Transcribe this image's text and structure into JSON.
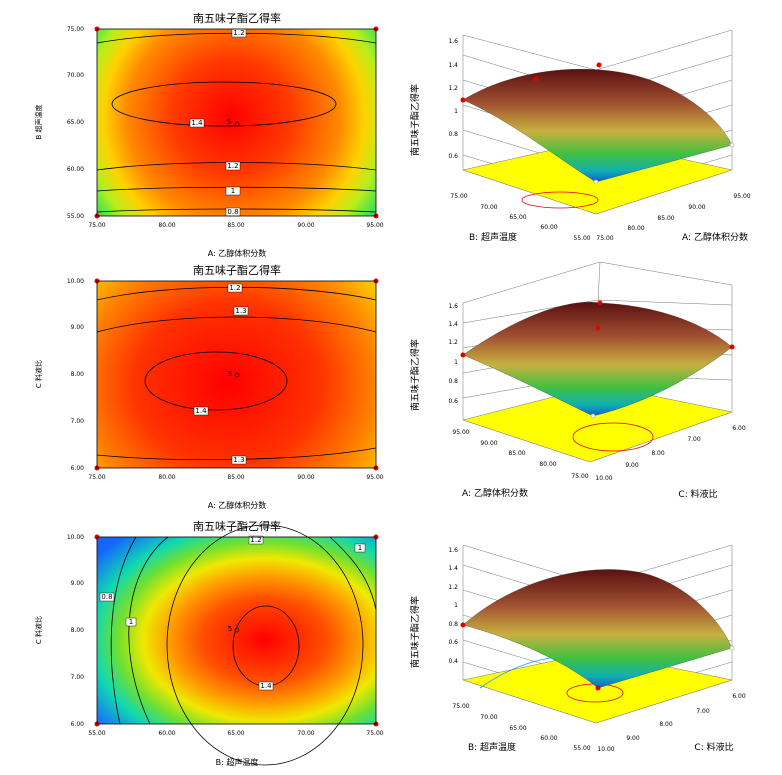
{
  "chart_data": [
    {
      "type": "contour",
      "title": "南五味子酯乙得率",
      "xlabel": "A: 乙醇体积分数",
      "ylabel": "B 超声温度",
      "xticks": [
        "75.00",
        "80.00",
        "85.00",
        "90.00",
        "95.00"
      ],
      "yticks": [
        "55.00",
        "60.00",
        "65.00",
        "70.00",
        "75.00"
      ],
      "contour_labels": [
        "1.2",
        "1.4",
        "1.2",
        "1",
        "0.8"
      ],
      "center_label": "5",
      "colormap": [
        "#1565ff",
        "#00d8d8",
        "#2ee05a",
        "#b8ee1a",
        "#ffd200",
        "#ff8a00",
        "#ff0000"
      ]
    },
    {
      "type": "surface3d",
      "zlabel": "南五味子酯乙得率",
      "xlabel": "A: 乙醇体积分数",
      "ylabel": "B: 超声温度",
      "zticks": [
        "1.6",
        "1.4",
        "1.2",
        "1",
        "0.8",
        "0.6"
      ],
      "xticks": [
        "75.00",
        "80.00",
        "85.00",
        "90.00",
        "95.00"
      ],
      "yticks": [
        "55.00",
        "60.00",
        "65.00",
        "70.00",
        "75.00"
      ]
    },
    {
      "type": "contour",
      "title": "南五味子酯乙得率",
      "xlabel": "A: 乙醇体积分数",
      "ylabel": "C 料液比",
      "xticks": [
        "75.00",
        "80.00",
        "85.00",
        "90.00",
        "95.00"
      ],
      "yticks": [
        "6.00",
        "7.00",
        "8.00",
        "9.00",
        "10.00"
      ],
      "contour_labels": [
        "1.2",
        "1.3",
        "1.4",
        "1.3"
      ],
      "center_label": "5"
    },
    {
      "type": "surface3d",
      "zlabel": "南五味子酯乙得率",
      "xlabel": "A: 乙醇体积分数",
      "ylabel": "C: 料液比",
      "zticks": [
        "1.6",
        "1.4",
        "1.2",
        "1",
        "0.8",
        "0.6"
      ],
      "xticks": [
        "75.00",
        "80.00",
        "85.00",
        "90.00",
        "95.00"
      ],
      "yticks": [
        "6.00",
        "7.00",
        "8.00",
        "9.00",
        "10.00"
      ]
    },
    {
      "type": "contour",
      "title": "南五味子酯乙得率",
      "xlabel": "B: 超声温度",
      "ylabel": "C 料液比",
      "xticks": [
        "55.00",
        "60.00",
        "65.00",
        "70.00",
        "75.00"
      ],
      "yticks": [
        "6.00",
        "7.00",
        "8.00",
        "9.00",
        "10.00"
      ],
      "contour_labels": [
        "1.2",
        "1",
        "0.8",
        "1",
        "1.4"
      ],
      "center_label": "5"
    },
    {
      "type": "surface3d",
      "zlabel": "南五味子酯乙得率",
      "xlabel": "B: 超声温度",
      "ylabel": "C: 料液比",
      "zticks": [
        "1.6",
        "1.4",
        "1.2",
        "1",
        "0.8",
        "0.6",
        "0.4"
      ],
      "xticks": [
        "55.00",
        "60.00",
        "65.00",
        "70.00",
        "75.00"
      ],
      "yticks": [
        "6.00",
        "7.00",
        "8.00",
        "9.00",
        "10.00"
      ]
    }
  ]
}
